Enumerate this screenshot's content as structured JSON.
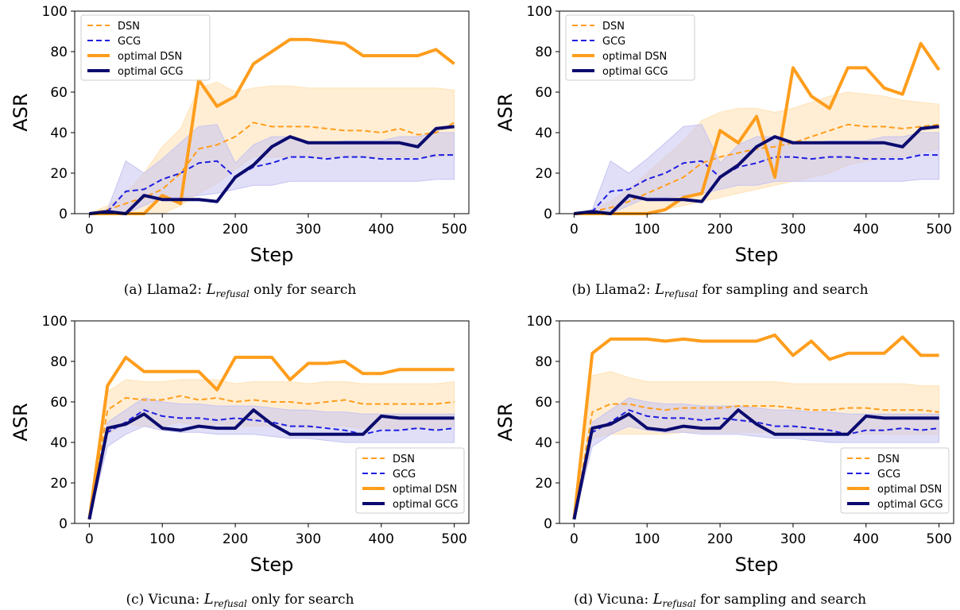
{
  "colors": {
    "dsn": "#ff9d1c",
    "dsn_band": "#ffe3b8",
    "gcg_dashed": "#1f1fe0",
    "gcg_band": "#c6c4f1",
    "optimal_gcg": "#0b0b6e"
  },
  "chart_data": [
    {
      "type": "line",
      "title": "",
      "xlabel": "Step",
      "ylabel": "ASR",
      "xlim": [
        -20,
        520
      ],
      "ylim": [
        0,
        100
      ],
      "xticks": [
        0,
        100,
        200,
        300,
        400,
        500
      ],
      "yticks": [
        0,
        20,
        40,
        60,
        80,
        100
      ],
      "legend_position": "top-left",
      "caption": {
        "prefix": "(a) Llama2: ",
        "symbol": "L",
        "subscript": "refusal",
        "suffix": " only for search"
      },
      "x": [
        0,
        25,
        50,
        75,
        100,
        125,
        150,
        175,
        200,
        225,
        250,
        275,
        300,
        325,
        350,
        375,
        400,
        425,
        450,
        475,
        500
      ],
      "series": [
        {
          "name": "DSN",
          "style": "dashed",
          "color": "#ff9d1c",
          "values": [
            0,
            2,
            5,
            8,
            12,
            20,
            32,
            34,
            38,
            45,
            43,
            43,
            43,
            42,
            41,
            41,
            40,
            42,
            39,
            40,
            45
          ],
          "band_upper": [
            0,
            4,
            10,
            20,
            33,
            42,
            62,
            65,
            60,
            62,
            63,
            63,
            62,
            62,
            62,
            62,
            62,
            62,
            62,
            62,
            61
          ],
          "band_lower": [
            0,
            0,
            0,
            0,
            0,
            4,
            10,
            15,
            22,
            28,
            28,
            28,
            28,
            28,
            28,
            28,
            28,
            28,
            28,
            28,
            29
          ]
        },
        {
          "name": "GCG",
          "style": "dashed",
          "color": "#1f1fe0",
          "values": [
            0,
            1,
            11,
            12,
            17,
            20,
            25,
            26,
            18,
            23,
            25,
            28,
            28,
            27,
            28,
            28,
            27,
            27,
            27,
            29,
            29
          ],
          "band_upper": [
            0,
            2,
            26,
            20,
            27,
            35,
            43,
            44,
            25,
            34,
            38,
            38,
            35,
            35,
            36,
            36,
            36,
            38,
            38,
            40,
            40
          ],
          "band_lower": [
            0,
            0,
            0,
            4,
            8,
            8,
            9,
            10,
            12,
            14,
            14,
            16,
            16,
            16,
            16,
            16,
            16,
            16,
            16,
            17,
            17
          ]
        },
        {
          "name": "optimal DSN",
          "style": "solid",
          "color": "#ff9d1c",
          "values": [
            0,
            0,
            0,
            0,
            9,
            5,
            66,
            53,
            58,
            74,
            80,
            86,
            86,
            85,
            84,
            78,
            78,
            78,
            78,
            81,
            74
          ]
        },
        {
          "name": "optimal GCG",
          "style": "solid",
          "color": "#0b0b6e",
          "values": [
            0,
            1,
            0,
            9,
            7,
            7,
            7,
            6,
            18,
            24,
            33,
            38,
            35,
            35,
            35,
            35,
            35,
            35,
            33,
            42,
            43
          ]
        }
      ]
    },
    {
      "type": "line",
      "title": "",
      "xlabel": "Step",
      "ylabel": "ASR",
      "xlim": [
        -20,
        520
      ],
      "ylim": [
        0,
        100
      ],
      "xticks": [
        0,
        100,
        200,
        300,
        400,
        500
      ],
      "yticks": [
        0,
        20,
        40,
        60,
        80,
        100
      ],
      "legend_position": "top-left",
      "caption": {
        "prefix": "(b) Llama2: ",
        "symbol": "L",
        "subscript": "refusal",
        "suffix": " for sampling and search"
      },
      "x": [
        0,
        25,
        50,
        75,
        100,
        125,
        150,
        175,
        200,
        225,
        250,
        275,
        300,
        325,
        350,
        375,
        400,
        425,
        450,
        475,
        500
      ],
      "series": [
        {
          "name": "DSN",
          "style": "dashed",
          "color": "#ff9d1c",
          "values": [
            0,
            1,
            3,
            6,
            10,
            14,
            18,
            25,
            28,
            30,
            32,
            33,
            35,
            38,
            41,
            44,
            43,
            43,
            42,
            43,
            44
          ],
          "band_upper": [
            0,
            2,
            6,
            12,
            20,
            28,
            36,
            46,
            50,
            52,
            52,
            50,
            52,
            55,
            58,
            60,
            59,
            58,
            56,
            55,
            54
          ],
          "band_lower": [
            0,
            0,
            0,
            0,
            0,
            2,
            4,
            6,
            8,
            10,
            12,
            14,
            16,
            18,
            20,
            24,
            26,
            28,
            28,
            30,
            32
          ]
        },
        {
          "name": "GCG",
          "style": "dashed",
          "color": "#1f1fe0",
          "values": [
            0,
            1,
            11,
            12,
            17,
            20,
            25,
            26,
            18,
            23,
            25,
            28,
            28,
            27,
            28,
            28,
            27,
            27,
            27,
            29,
            29
          ],
          "band_upper": [
            0,
            2,
            26,
            20,
            27,
            35,
            43,
            44,
            25,
            34,
            38,
            38,
            35,
            35,
            36,
            36,
            36,
            38,
            38,
            40,
            40
          ],
          "band_lower": [
            0,
            0,
            0,
            4,
            8,
            8,
            9,
            10,
            12,
            14,
            14,
            16,
            16,
            16,
            16,
            16,
            16,
            16,
            16,
            17,
            17
          ]
        },
        {
          "name": "optimal DSN",
          "style": "solid",
          "color": "#ff9d1c",
          "values": [
            0,
            0,
            0,
            0,
            0,
            2,
            8,
            10,
            41,
            35,
            48,
            18,
            72,
            58,
            52,
            72,
            72,
            62,
            59,
            84,
            71
          ]
        },
        {
          "name": "optimal GCG",
          "style": "solid",
          "color": "#0b0b6e",
          "values": [
            0,
            1,
            0,
            9,
            7,
            7,
            7,
            6,
            18,
            24,
            33,
            38,
            35,
            35,
            35,
            35,
            35,
            35,
            33,
            42,
            43
          ]
        }
      ]
    },
    {
      "type": "line",
      "title": "",
      "xlabel": "Step",
      "ylabel": "ASR",
      "xlim": [
        -20,
        520
      ],
      "ylim": [
        0,
        100
      ],
      "xticks": [
        0,
        100,
        200,
        300,
        400,
        500
      ],
      "yticks": [
        0,
        20,
        40,
        60,
        80,
        100
      ],
      "legend_position": "bottom-right",
      "caption": {
        "prefix": "(c) Vicuna: ",
        "symbol": "L",
        "subscript": "refusal",
        "suffix": " only for search"
      },
      "x": [
        0,
        25,
        50,
        75,
        100,
        125,
        150,
        175,
        200,
        225,
        250,
        275,
        300,
        325,
        350,
        375,
        400,
        425,
        450,
        475,
        500
      ],
      "series": [
        {
          "name": "DSN",
          "style": "dashed",
          "color": "#ff9d1c",
          "values": [
            2,
            56,
            62,
            61,
            61,
            63,
            61,
            62,
            60,
            61,
            60,
            60,
            59,
            60,
            61,
            59,
            59,
            59,
            59,
            59,
            60
          ],
          "band_upper": [
            2,
            65,
            71,
            70,
            70,
            71,
            71,
            71,
            69,
            70,
            70,
            70,
            69,
            70,
            70,
            69,
            69,
            69,
            69,
            69,
            70
          ],
          "band_lower": [
            2,
            44,
            49,
            48,
            48,
            50,
            48,
            49,
            48,
            48,
            48,
            48,
            47,
            48,
            48,
            47,
            47,
            47,
            47,
            47,
            48
          ]
        },
        {
          "name": "GCG",
          "style": "dashed",
          "color": "#1f1fe0",
          "values": [
            2,
            45,
            50,
            56,
            53,
            52,
            52,
            51,
            52,
            51,
            50,
            48,
            48,
            47,
            46,
            44,
            46,
            46,
            47,
            46,
            47
          ],
          "band_upper": [
            2,
            50,
            56,
            62,
            60,
            59,
            59,
            58,
            58,
            58,
            57,
            56,
            56,
            55,
            55,
            54,
            54,
            54,
            54,
            54,
            54
          ],
          "band_lower": [
            2,
            38,
            44,
            48,
            46,
            45,
            45,
            44,
            44,
            44,
            43,
            42,
            42,
            41,
            40,
            40,
            40,
            40,
            40,
            40,
            40
          ]
        },
        {
          "name": "optimal DSN",
          "style": "solid",
          "color": "#ff9d1c",
          "values": [
            2,
            68,
            82,
            75,
            75,
            75,
            75,
            66,
            82,
            82,
            82,
            71,
            79,
            79,
            80,
            74,
            74,
            76,
            76,
            76,
            76
          ]
        },
        {
          "name": "optimal GCG",
          "style": "solid",
          "color": "#0b0b6e",
          "values": [
            2,
            47,
            49,
            54,
            47,
            46,
            48,
            47,
            47,
            56,
            49,
            44,
            44,
            44,
            44,
            44,
            53,
            52,
            52,
            52,
            52
          ]
        }
      ]
    },
    {
      "type": "line",
      "title": "",
      "xlabel": "Step",
      "ylabel": "ASR",
      "xlim": [
        -20,
        520
      ],
      "ylim": [
        0,
        100
      ],
      "xticks": [
        0,
        100,
        200,
        300,
        400,
        500
      ],
      "yticks": [
        0,
        20,
        40,
        60,
        80,
        100
      ],
      "legend_position": "bottom-right",
      "caption": {
        "prefix": "(d) Vicuna: ",
        "symbol": "L",
        "subscript": "refusal",
        "suffix": " for sampling and search"
      },
      "x": [
        0,
        25,
        50,
        75,
        100,
        125,
        150,
        175,
        200,
        225,
        250,
        275,
        300,
        325,
        350,
        375,
        400,
        425,
        450,
        475,
        500
      ],
      "series": [
        {
          "name": "DSN",
          "style": "dashed",
          "color": "#ff9d1c",
          "values": [
            2,
            55,
            59,
            59,
            57,
            56,
            57,
            57,
            57,
            58,
            58,
            58,
            57,
            56,
            56,
            57,
            57,
            56,
            56,
            56,
            55
          ],
          "band_upper": [
            2,
            73,
            75,
            72,
            70,
            70,
            70,
            70,
            70,
            70,
            70,
            70,
            69,
            69,
            69,
            69,
            69,
            69,
            69,
            68,
            68
          ],
          "band_lower": [
            2,
            42,
            44,
            44,
            44,
            44,
            45,
            45,
            45,
            45,
            45,
            45,
            45,
            45,
            44,
            44,
            44,
            44,
            44,
            44,
            44
          ]
        },
        {
          "name": "GCG",
          "style": "dashed",
          "color": "#1f1fe0",
          "values": [
            2,
            45,
            50,
            56,
            53,
            52,
            52,
            51,
            52,
            51,
            50,
            48,
            48,
            47,
            46,
            44,
            46,
            46,
            47,
            46,
            47
          ],
          "band_upper": [
            2,
            50,
            56,
            62,
            60,
            59,
            59,
            58,
            58,
            58,
            57,
            56,
            56,
            55,
            55,
            54,
            54,
            54,
            54,
            54,
            54
          ],
          "band_lower": [
            2,
            38,
            44,
            48,
            46,
            45,
            45,
            44,
            44,
            44,
            43,
            42,
            42,
            41,
            40,
            40,
            40,
            40,
            40,
            40,
            40
          ]
        },
        {
          "name": "optimal DSN",
          "style": "solid",
          "color": "#ff9d1c",
          "values": [
            2,
            84,
            91,
            91,
            91,
            90,
            91,
            90,
            90,
            90,
            90,
            93,
            83,
            90,
            81,
            84,
            84,
            84,
            92,
            83,
            83
          ]
        },
        {
          "name": "optimal GCG",
          "style": "solid",
          "color": "#0b0b6e",
          "values": [
            2,
            47,
            49,
            54,
            47,
            46,
            48,
            47,
            47,
            56,
            49,
            44,
            44,
            44,
            44,
            44,
            53,
            52,
            52,
            52,
            52
          ]
        }
      ]
    }
  ]
}
